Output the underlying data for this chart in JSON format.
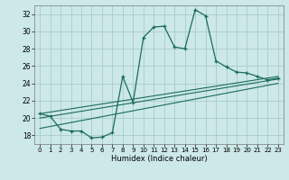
{
  "xlabel": "Humidex (Indice chaleur)",
  "bg_color": "#cce8e8",
  "grid_color": "#aacccc",
  "line_color": "#1a6b5a",
  "xlim": [
    -0.5,
    23.5
  ],
  "ylim": [
    17,
    33
  ],
  "yticks": [
    18,
    20,
    22,
    24,
    26,
    28,
    30,
    32
  ],
  "xticks": [
    0,
    1,
    2,
    3,
    4,
    5,
    6,
    7,
    8,
    9,
    10,
    11,
    12,
    13,
    14,
    15,
    16,
    17,
    18,
    19,
    20,
    21,
    22,
    23
  ],
  "series1_x": [
    0,
    1,
    2,
    3,
    4,
    5,
    6,
    7,
    8,
    9,
    10,
    11,
    12,
    13,
    14,
    15,
    16,
    17,
    18,
    19,
    20,
    21,
    22,
    23
  ],
  "series1_y": [
    20.5,
    20.2,
    18.7,
    18.5,
    18.5,
    17.7,
    17.8,
    18.3,
    24.8,
    21.8,
    29.3,
    30.5,
    30.6,
    28.2,
    28.0,
    32.5,
    31.8,
    26.6,
    25.9,
    25.3,
    25.2,
    24.8,
    24.4,
    24.6
  ],
  "series2_x": [
    0,
    23
  ],
  "series2_y": [
    18.8,
    24.0
  ],
  "series3_x": [
    0,
    23
  ],
  "series3_y": [
    20.0,
    24.5
  ],
  "series4_x": [
    0,
    23
  ],
  "series4_y": [
    20.5,
    24.8
  ]
}
